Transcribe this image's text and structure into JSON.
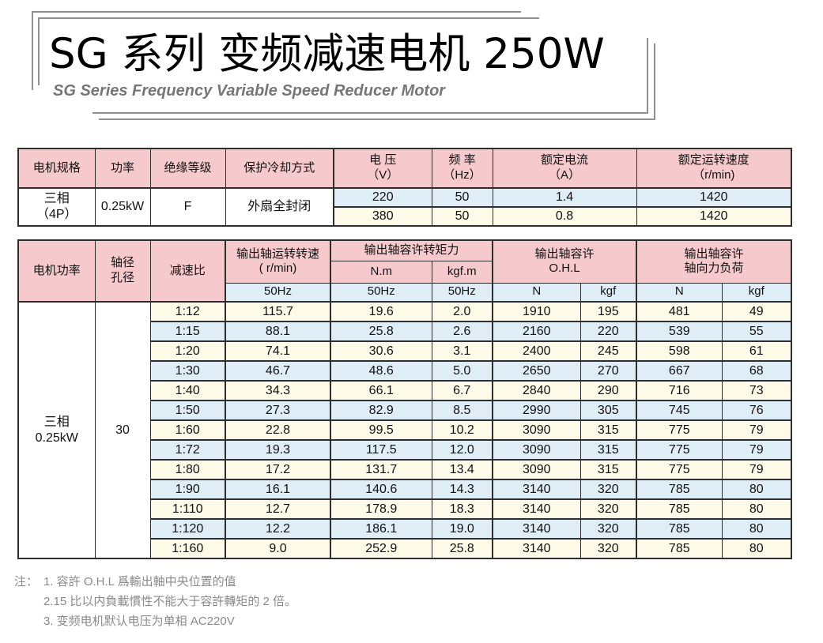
{
  "title": {
    "cn": "SG 系列 变频减速电机 250W",
    "en": "SG Series Frequency Variable Speed Reducer Motor"
  },
  "colors": {
    "header_pink": "#f6c9cc",
    "row_blue": "#dfeef6",
    "row_cream": "#fdfbe8",
    "border": "#2e2e2e",
    "frame_gray": "#909090",
    "note_gray": "#8a8a8a",
    "subtitle_gray": "#767676"
  },
  "spec_table": {
    "header": {
      "motor_spec": "电机规格",
      "power": "功率",
      "insulation": "绝缘等级",
      "cooling": "保护冷却方式",
      "voltage": [
        "电 压",
        "（V）"
      ],
      "frequency": [
        "频 率",
        "（Hz）"
      ],
      "current": [
        "额定电流",
        "（A）"
      ],
      "speed": [
        "额定运转速度",
        "（r/min)"
      ]
    },
    "fixed": {
      "motor_spec": [
        "三相",
        "（4P）"
      ],
      "power": "0.25kW",
      "insulation": "F",
      "cooling": "外扇全封闭"
    },
    "rows": [
      {
        "voltage": "220",
        "frequency": "50",
        "current": "1.4",
        "speed": "1420"
      },
      {
        "voltage": "380",
        "frequency": "50",
        "current": "0.8",
        "speed": "1420"
      }
    ]
  },
  "performance_table": {
    "header": {
      "motor_power": "电机功率",
      "shaft_bore": [
        "轴径",
        "孔径"
      ],
      "ratio": "减速比",
      "output_speed": [
        "输出轴运转转速",
        "( r/min)"
      ],
      "torque_group": "输出轴容许转矩力",
      "torque_nm": "N.m",
      "torque_kgfm": "kgf.m",
      "ohl_group": [
        "输出轴容许",
        "O.H.L"
      ],
      "axial_group": [
        "输出轴容许",
        "轴向力负荷"
      ],
      "freq_50": "50Hz",
      "n_label": "N",
      "kgf_label": "kgf"
    },
    "fixed": {
      "motor_power": [
        "三相",
        "0.25kW"
      ],
      "shaft_bore": "30"
    },
    "rows": [
      [
        "1:12",
        "115.7",
        "19.6",
        "2.0",
        "1910",
        "195",
        "481",
        "49"
      ],
      [
        "1:15",
        "88.1",
        "25.8",
        "2.6",
        "2160",
        "220",
        "539",
        "55"
      ],
      [
        "1:20",
        "74.1",
        "30.6",
        "3.1",
        "2400",
        "245",
        "598",
        "61"
      ],
      [
        "1:30",
        "46.7",
        "48.6",
        "5.0",
        "2650",
        "270",
        "667",
        "68"
      ],
      [
        "1:40",
        "34.3",
        "66.1",
        "6.7",
        "2840",
        "290",
        "716",
        "73"
      ],
      [
        "1:50",
        "27.3",
        "82.9",
        "8.5",
        "2990",
        "305",
        "745",
        "76"
      ],
      [
        "1:60",
        "22.8",
        "99.5",
        "10.2",
        "3090",
        "315",
        "775",
        "79"
      ],
      [
        "1:72",
        "19.3",
        "117.5",
        "12.0",
        "3090",
        "315",
        "775",
        "79"
      ],
      [
        "1:80",
        "17.2",
        "131.7",
        "13.4",
        "3090",
        "315",
        "775",
        "79"
      ],
      [
        "1:90",
        "16.1",
        "140.6",
        "14.3",
        "3140",
        "320",
        "785",
        "80"
      ],
      [
        "1:110",
        "12.7",
        "178.9",
        "18.3",
        "3140",
        "320",
        "785",
        "80"
      ],
      [
        "1:120",
        "12.2",
        "186.1",
        "19.0",
        "3140",
        "320",
        "785",
        "80"
      ],
      [
        "1:160",
        "9.0",
        "252.9",
        "25.8",
        "3140",
        "320",
        "785",
        "80"
      ]
    ]
  },
  "notes": {
    "label": "注：",
    "lines": [
      "1. 容許 O.H.L 爲輸出軸中央位置的值",
      "2.15 比以内負載慣性不能大于容許轉矩的 2 倍。",
      "3. 变频电机默认电压为单相 AC220V"
    ]
  }
}
